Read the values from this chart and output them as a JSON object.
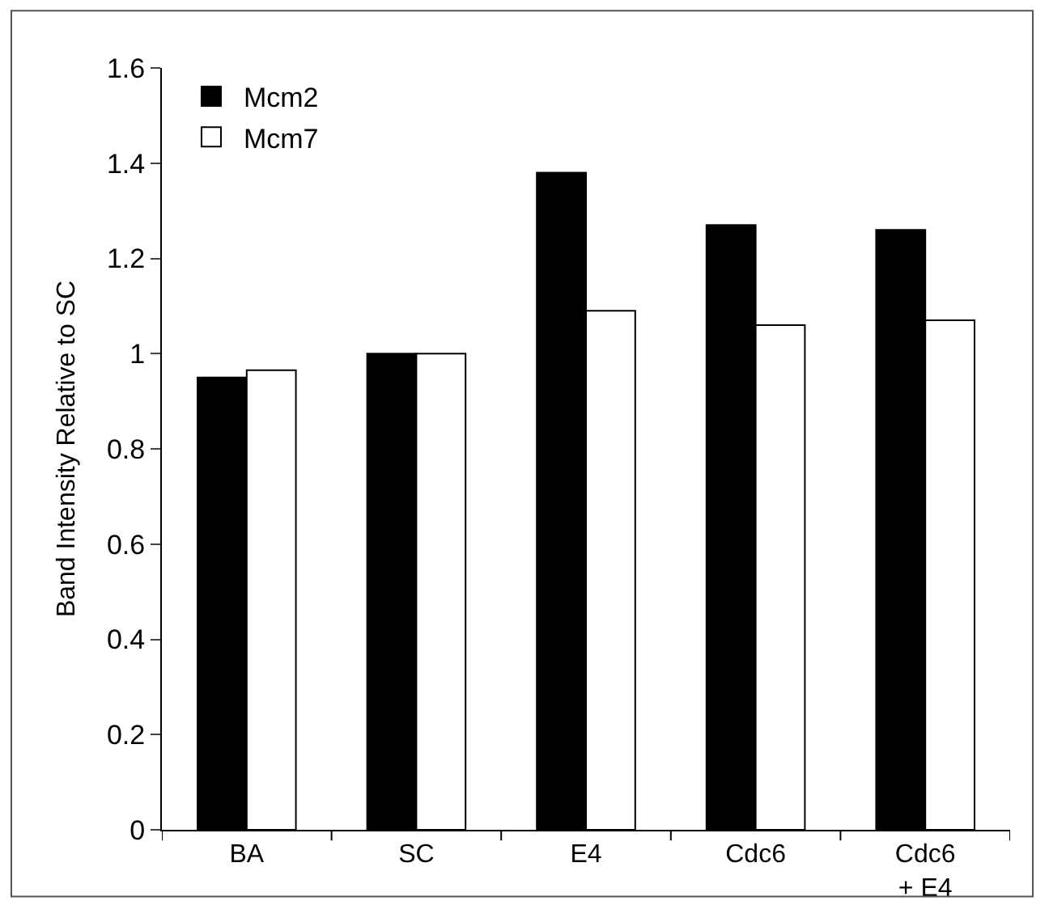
{
  "chart_data": {
    "type": "bar",
    "ylabel": "Band Intensity Relative to SC",
    "categories": [
      "BA",
      "SC",
      "E4",
      "Cdc6",
      "Cdc6\n+ E4"
    ],
    "series": [
      {
        "name": "Mcm2",
        "color": "#000000",
        "values": [
          0.95,
          1.0,
          1.38,
          1.27,
          1.26
        ]
      },
      {
        "name": "Mcm7",
        "color": "#ffffff",
        "values": [
          0.965,
          1.0,
          1.09,
          1.06,
          1.07
        ]
      }
    ],
    "ylim": [
      0,
      1.6
    ],
    "yticks": [
      0,
      0.2,
      0.4,
      0.6,
      0.8,
      1,
      1.2,
      1.4,
      1.6
    ],
    "grid": false,
    "legend": "top left"
  }
}
